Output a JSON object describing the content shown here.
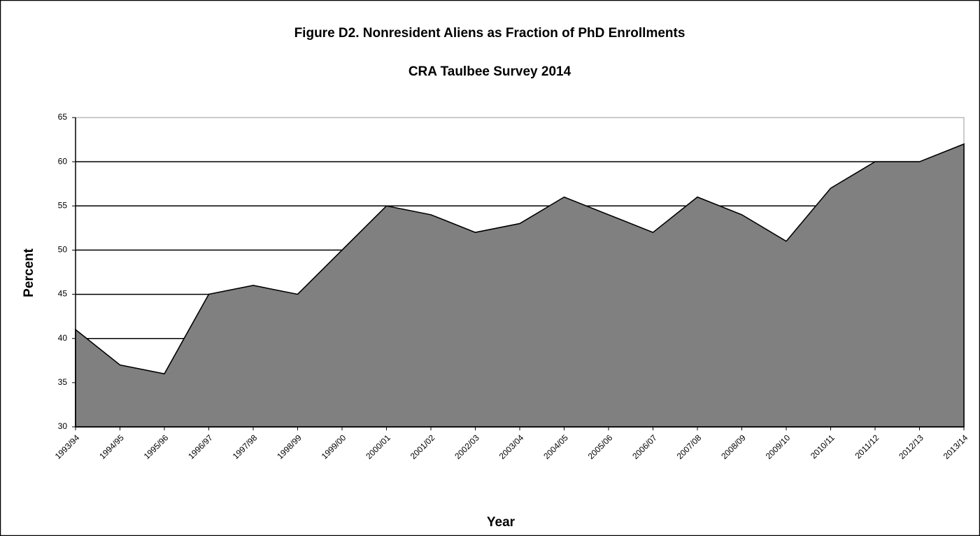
{
  "chart_data": {
    "type": "area",
    "title": "Figure D2. Nonresident Aliens as Fraction of PhD Enrollments",
    "subtitle": "CRA Taulbee Survey 2014",
    "x_label": "Year",
    "y_label": "Percent",
    "categories": [
      "1993/94",
      "1994/95",
      "1995/96",
      "1996/97",
      "1997/98",
      "1998/99",
      "1999/00",
      "2000/01",
      "2001/02",
      "2002/03",
      "2003/04",
      "2004/05",
      "2005/06",
      "2006/07",
      "2007/08",
      "2008/09",
      "2009/10",
      "2010/11",
      "2011/12",
      "2012/13",
      "2013/14"
    ],
    "values": [
      41,
      37,
      36,
      45,
      46,
      45,
      50,
      55,
      54,
      52,
      53,
      56,
      54,
      52,
      56,
      54,
      51,
      57,
      60,
      60,
      62
    ],
    "color": "#808080",
    "ylim": [
      30,
      65
    ],
    "yticks": [
      30,
      35,
      40,
      45,
      50,
      55,
      60,
      65
    ],
    "grid": true
  }
}
